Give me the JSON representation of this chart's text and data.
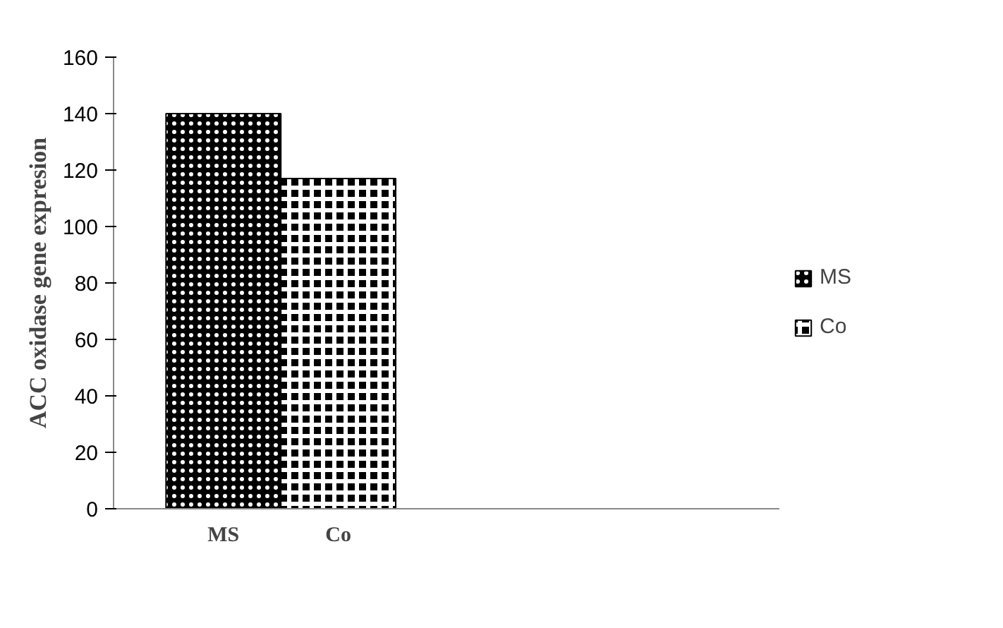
{
  "chart_data": {
    "type": "bar",
    "ylabel": "ACC oxidase gene expresion",
    "categories": [
      "MS",
      "Co"
    ],
    "series": [
      {
        "name": "MS",
        "color": "#000000",
        "values": [
          140,
          null
        ]
      },
      {
        "name": "Co",
        "color": "#000000",
        "values": [
          null,
          117
        ]
      }
    ],
    "ylim": [
      0,
      160
    ],
    "yticks": [
      0,
      20,
      40,
      60,
      80,
      100,
      120,
      140,
      160
    ],
    "grid": false,
    "legend": "right"
  }
}
